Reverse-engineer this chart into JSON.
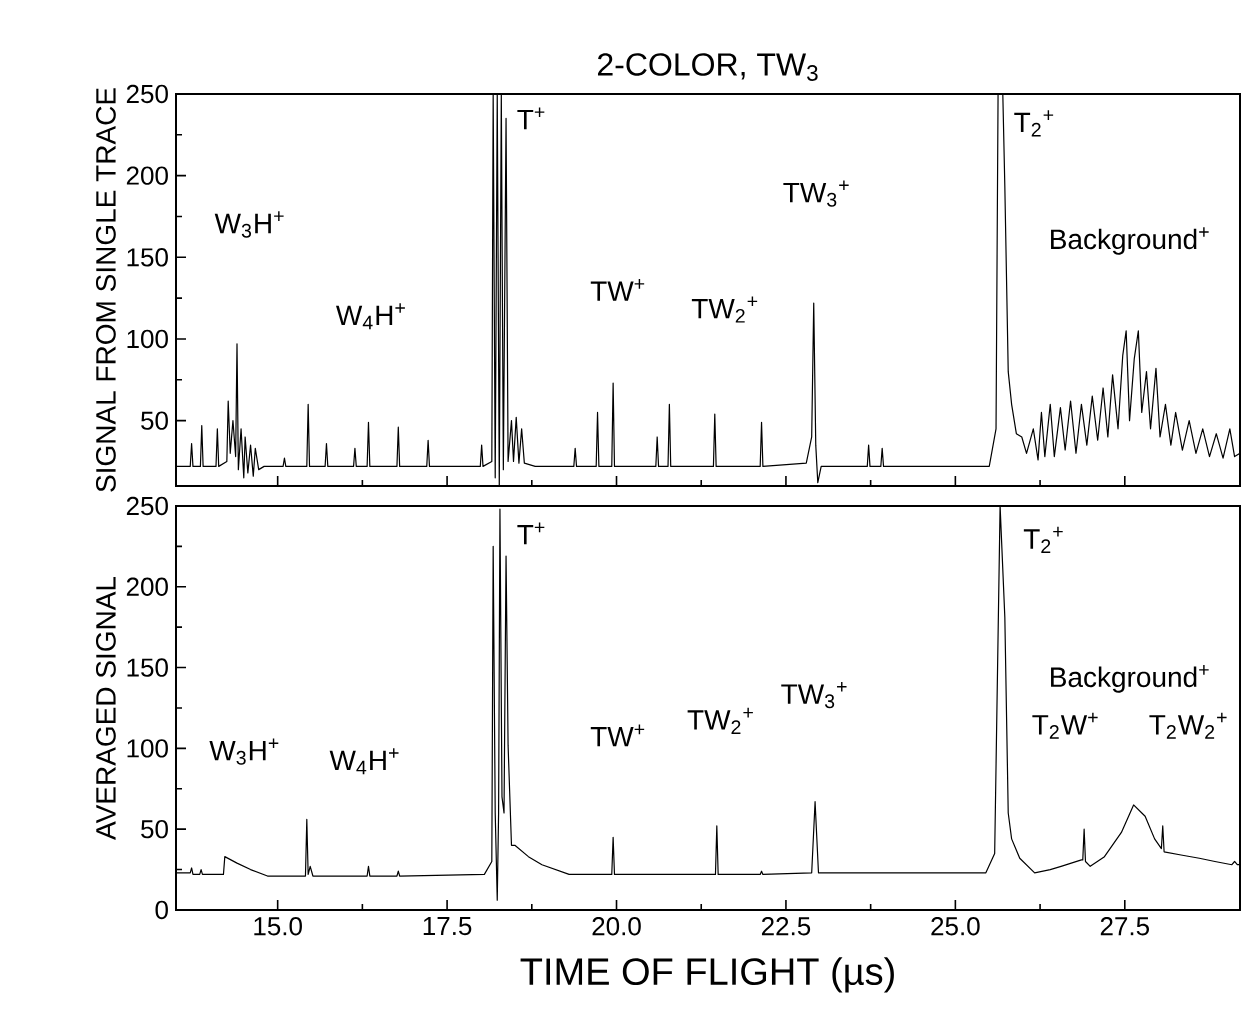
{
  "chart_data": [
    {
      "type": "line",
      "title": "2-COLOR, TW$_{3}$",
      "ylabel": "SIGNAL FROM SINGLE TRACE",
      "color": "#000000",
      "tick_labels": "y",
      "xlim": [
        13.5,
        29.2
      ],
      "ylim": [
        10,
        250
      ],
      "xticks": [
        {
          "value": 15,
          "label": null
        },
        {
          "value": 17.5,
          "label": null
        },
        {
          "value": 20,
          "label": null
        },
        {
          "value": 22.5,
          "label": null
        },
        {
          "value": 25,
          "label": null
        },
        {
          "value": 27.5,
          "label": null
        }
      ],
      "yticks": [
        50,
        100,
        150,
        200,
        250
      ],
      "x": [
        13.5,
        13.71,
        13.73,
        13.75,
        13.86,
        13.88,
        13.9,
        14.09,
        14.11,
        14.13,
        14.25,
        14.27,
        14.3,
        14.34,
        14.38,
        14.4,
        14.42,
        14.46,
        14.5,
        14.52,
        14.56,
        14.6,
        14.64,
        14.67,
        14.72,
        14.8,
        15.08,
        15.1,
        15.12,
        15.43,
        15.45,
        15.47,
        15.7,
        15.72,
        15.74,
        16.12,
        16.14,
        16.16,
        16.32,
        16.34,
        16.36,
        16.76,
        16.78,
        16.8,
        17.2,
        17.22,
        17.24,
        17.99,
        18.01,
        18.03,
        18.16,
        18.18,
        18.21,
        18.24,
        18.27,
        18.3,
        18.33,
        18.37,
        18.4,
        18.45,
        18.48,
        18.52,
        18.56,
        18.6,
        18.64,
        18.8,
        19.37,
        19.39,
        19.41,
        19.7,
        19.72,
        19.74,
        19.93,
        19.95,
        19.97,
        20.58,
        20.6,
        20.62,
        20.76,
        20.78,
        20.8,
        21.43,
        21.45,
        21.47,
        22.12,
        22.14,
        22.16,
        22.8,
        22.88,
        22.91,
        22.94,
        22.97,
        23.02,
        23.7,
        23.72,
        23.74,
        23.9,
        23.92,
        23.94,
        25.5,
        25.6,
        25.63,
        25.67,
        25.7,
        25.73,
        25.78,
        25.83,
        25.9,
        25.98,
        26.05,
        26.15,
        26.22,
        26.27,
        26.32,
        26.4,
        26.46,
        26.55,
        26.62,
        26.7,
        26.78,
        26.86,
        26.94,
        27.02,
        27.1,
        27.18,
        27.25,
        27.32,
        27.4,
        27.47,
        27.52,
        27.57,
        27.64,
        27.7,
        27.75,
        27.82,
        27.88,
        27.96,
        28.02,
        28.1,
        28.18,
        28.25,
        28.35,
        28.45,
        28.55,
        28.65,
        28.75,
        28.85,
        28.95,
        29.05,
        29.12,
        29.2
      ],
      "values": [
        22,
        22,
        36,
        22,
        22,
        47,
        22,
        22,
        45,
        22,
        25,
        62,
        30,
        50,
        28,
        97,
        20,
        45,
        15,
        40,
        18,
        35,
        16,
        33,
        20,
        22,
        22,
        27,
        22,
        22,
        60,
        22,
        22,
        36,
        22,
        22,
        33,
        22,
        22,
        49,
        22,
        22,
        46,
        22,
        22,
        38,
        22,
        22,
        35,
        22,
        25,
        250,
        15,
        250,
        10,
        250,
        20,
        235,
        25,
        50,
        25,
        52,
        24,
        45,
        24,
        22,
        22,
        33,
        22,
        22,
        55,
        22,
        22,
        73,
        22,
        22,
        40,
        22,
        22,
        60,
        22,
        22,
        54,
        22,
        22,
        49,
        22,
        24,
        40,
        122,
        35,
        12,
        22,
        22,
        35,
        22,
        22,
        33,
        22,
        22,
        45,
        250,
        250,
        250,
        193,
        80,
        60,
        42,
        40,
        30,
        45,
        26,
        55,
        28,
        60,
        28,
        58,
        32,
        62,
        30,
        60,
        35,
        65,
        38,
        70,
        40,
        78,
        45,
        90,
        105,
        50,
        88,
        105,
        55,
        80,
        45,
        82,
        40,
        60,
        35,
        55,
        32,
        50,
        30,
        45,
        28,
        42,
        27,
        45,
        28,
        30
      ],
      "annotations": [
        "W$_{3}$H$^{+}$",
        "W$_{4}$H$^{+}$",
        "T$^{+}$",
        "TW$^{+}$",
        "TW$_{2}$$^{+}$",
        "TW$_{3}$$^{+}$",
        "T$_{2}$$^{+}$",
        "Background$^{+}$"
      ]
    },
    {
      "type": "line",
      "xlabel": "TIME OF FLIGHT (µs)",
      "ylabel": "AVERAGED SIGNAL",
      "color": "#000000",
      "xlim": [
        13.5,
        29.2
      ],
      "ylim": [
        0,
        250
      ],
      "xticks": [
        {
          "value": 15,
          "label": "15.0"
        },
        {
          "value": 17.5,
          "label": "17.5"
        },
        {
          "value": 20,
          "label": "20.0"
        },
        {
          "value": 22.5,
          "label": "22.5"
        },
        {
          "value": 25,
          "label": "25.0"
        },
        {
          "value": 27.5,
          "label": "27.5"
        }
      ],
      "yticks": [
        0,
        50,
        100,
        150,
        200,
        250
      ],
      "x": [
        13.5,
        13.71,
        13.73,
        13.75,
        13.85,
        13.87,
        13.89,
        14.05,
        14.2,
        14.22,
        14.4,
        14.6,
        14.85,
        15.41,
        15.43,
        15.45,
        15.48,
        15.52,
        16.32,
        16.34,
        16.36,
        16.76,
        16.78,
        16.8,
        18.05,
        18.16,
        18.18,
        18.21,
        18.24,
        18.26,
        18.28,
        18.31,
        18.34,
        18.37,
        18.4,
        18.45,
        18.5,
        18.7,
        18.9,
        19.3,
        19.93,
        19.95,
        19.97,
        21.46,
        21.48,
        21.5,
        22.12,
        22.14,
        22.16,
        22.88,
        22.93,
        22.98,
        25.45,
        25.58,
        25.66,
        25.73,
        25.78,
        25.83,
        25.95,
        26.17,
        26.4,
        26.56,
        26.86,
        26.88,
        26.9,
        26.92,
        26.99,
        27.2,
        27.45,
        27.63,
        27.8,
        27.94,
        28.04,
        28.06,
        28.08,
        28.33,
        28.6,
        28.83,
        29.08,
        29.12,
        29.16,
        29.2
      ],
      "values": [
        23,
        23,
        26,
        22,
        22,
        25,
        22,
        22,
        22,
        33,
        29,
        25,
        21,
        21,
        56,
        22,
        27,
        21,
        21,
        27,
        21,
        21,
        24,
        21,
        22,
        30,
        225,
        60,
        6,
        60,
        248,
        70,
        60,
        219,
        102,
        40,
        40,
        33,
        28,
        22,
        22,
        45,
        22,
        22,
        52,
        22,
        22,
        24,
        22,
        23,
        67,
        23,
        23,
        35,
        250,
        181,
        60,
        44,
        32,
        23,
        25,
        27,
        31,
        31,
        50,
        30,
        27,
        33,
        48,
        65,
        58,
        44,
        38,
        52,
        36,
        34,
        32,
        30,
        28,
        30,
        28,
        28
      ],
      "annotations": [
        "W$_{3}$H$^{+}$",
        "W$_{4}$H$^{+}$",
        "T$^{+}$",
        "TW$^{+}$",
        "TW$_{2}$$^{+}$",
        "TW$_{3}$$^{+}$",
        "T$_{2}$$^{+}$",
        "Background$^{+}$",
        "T$_{2}$W$^{+}$",
        "T$_{2}$W$_{2}$$^{+}$"
      ]
    }
  ]
}
